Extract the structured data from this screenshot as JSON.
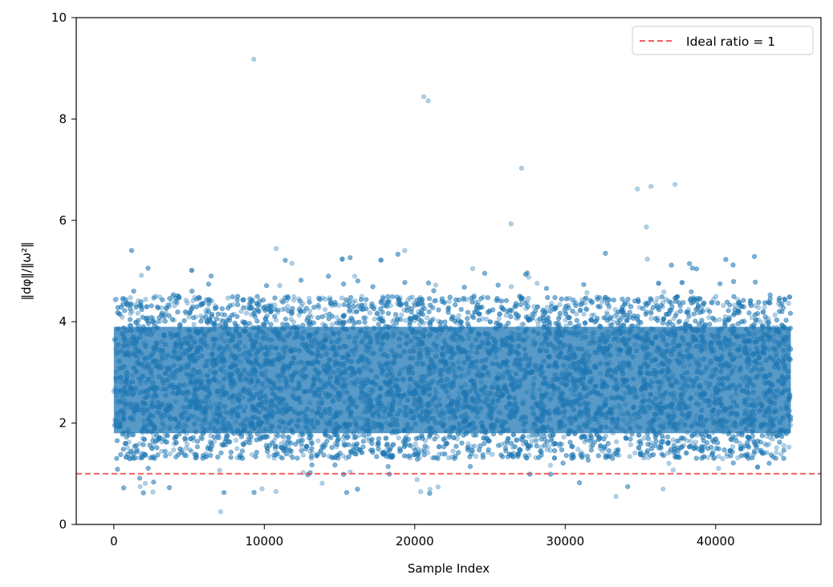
{
  "chart_data": {
    "type": "scatter",
    "title": "",
    "xlabel": "Sample Index",
    "ylabel": "‖dφ‖/‖ω²‖",
    "xlim": [
      -2500,
      47000
    ],
    "ylim": [
      0,
      10
    ],
    "xticks": [
      0,
      10000,
      20000,
      30000,
      40000
    ],
    "yticks": [
      0,
      2,
      4,
      6,
      8,
      10
    ],
    "grid": false,
    "legend_position": "top-right",
    "point_color": "#1f77b4",
    "point_alpha": 0.35,
    "series": [
      {
        "kind": "scatter",
        "n_points": 45000,
        "x_range": [
          0,
          45000
        ],
        "y_core_range": [
          1.0,
          4.8
        ],
        "y_min": 0.25,
        "outliers": [
          {
            "x": 9300,
            "y": 9.18
          },
          {
            "x": 20600,
            "y": 8.44
          },
          {
            "x": 20900,
            "y": 8.36
          },
          {
            "x": 27100,
            "y": 7.03
          },
          {
            "x": 37300,
            "y": 6.71
          },
          {
            "x": 35700,
            "y": 6.67
          },
          {
            "x": 34800,
            "y": 6.62
          },
          {
            "x": 26400,
            "y": 5.93
          },
          {
            "x": 35400,
            "y": 5.87
          },
          {
            "x": 7100,
            "y": 0.25
          }
        ]
      }
    ],
    "reference_line": {
      "name": "Ideal ratio = 1",
      "y": 1,
      "color": "#ef4444",
      "style": "dashed"
    },
    "legend": [
      {
        "label": "Ideal ratio = 1",
        "color": "#ef4444",
        "style": "dashed"
      }
    ]
  }
}
